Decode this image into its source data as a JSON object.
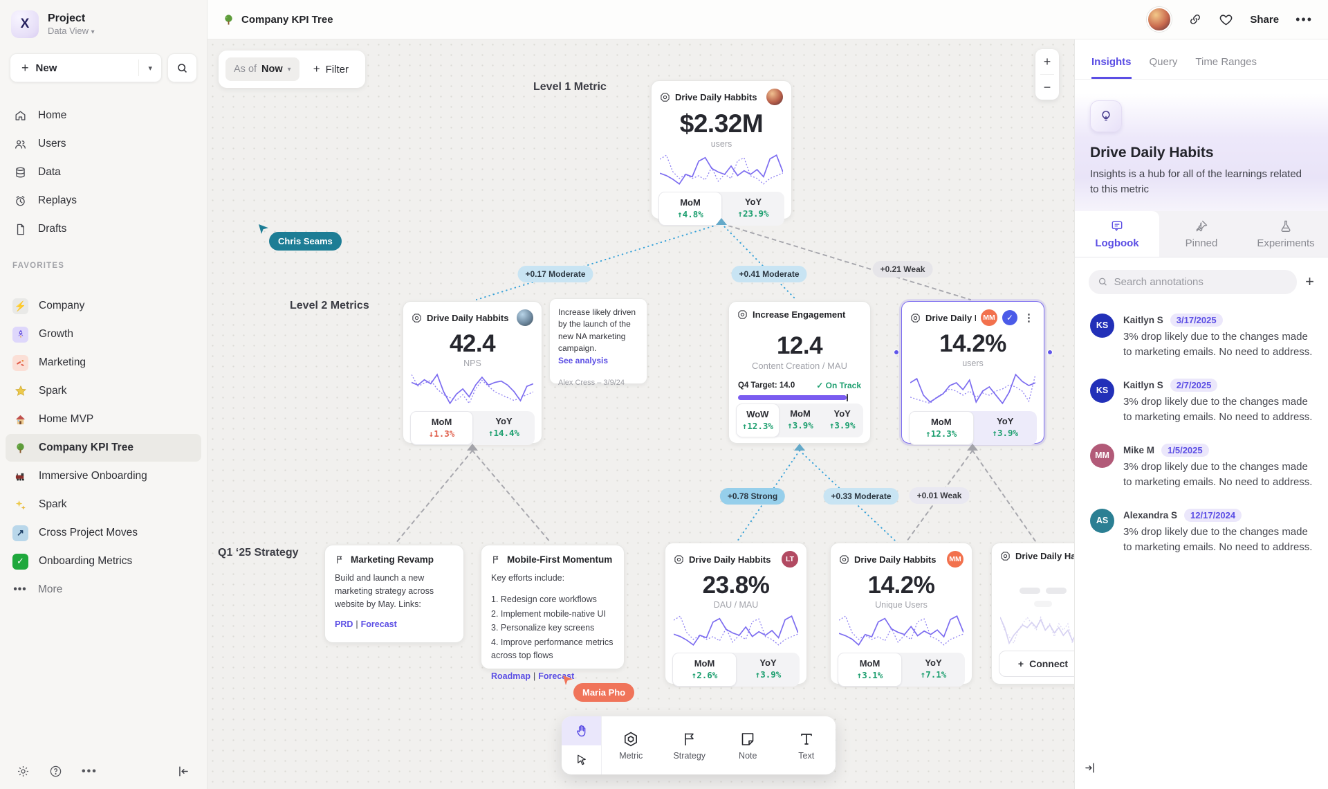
{
  "topbar": {
    "title": "Company KPI Tree",
    "share_label": "Share"
  },
  "sidebar": {
    "project_name": "Project",
    "project_view": "Data View",
    "new_label": "New",
    "favorites_label": "FAVORITES",
    "more_label": "More",
    "nav": [
      {
        "label": "Home"
      },
      {
        "label": "Users"
      },
      {
        "label": "Data"
      },
      {
        "label": "Replays"
      },
      {
        "label": "Drafts"
      }
    ],
    "favorites": [
      {
        "label": "Company"
      },
      {
        "label": "Growth"
      },
      {
        "label": "Marketing"
      },
      {
        "label": "Spark"
      },
      {
        "label": "Home MVP"
      },
      {
        "label": "Company KPI Tree"
      },
      {
        "label": "Immersive Onboarding"
      },
      {
        "label": "Spark"
      },
      {
        "label": "Cross Project Moves"
      },
      {
        "label": "Onboarding Metrics"
      }
    ]
  },
  "canvas": {
    "asof_label": "As of",
    "asof_value": "Now",
    "filter_label": "Filter",
    "zoom_in": "+",
    "zoom_out": "−",
    "level1_label": "Level 1 Metric",
    "level2_label": "Level 2 Metrics",
    "q1_label": "Q1 ‘25 Strategy",
    "cursor1": "Chris Seams",
    "cursor2": "Maria Pho",
    "edge_labels": {
      "e1": "+0.17 Moderate",
      "e2": "+0.41 Moderate",
      "e3": "+0.21 Weak",
      "e4": "+0.78 Strong",
      "e5": "+0.33 Moderate",
      "e6": "+0.01 Weak"
    }
  },
  "cards": {
    "l1": {
      "title": "Drive Daily Habbits",
      "value": "$2.32M",
      "unit": "users",
      "mom_label": "MoM",
      "mom": "↑4.8%",
      "yoy_label": "YoY",
      "yoy": "↑23.9%",
      "spark": {
        "solid": [
          30,
          26,
          20,
          12,
          28,
          24,
          50,
          56,
          38,
          32,
          28,
          42,
          26,
          34,
          28,
          36,
          24,
          54,
          60,
          32
        ],
        "dotted": [
          56,
          62,
          38,
          28,
          34,
          28,
          32,
          26,
          44,
          24,
          34,
          28,
          54,
          58,
          32,
          28,
          20,
          28,
          32,
          36
        ]
      }
    },
    "l2a": {
      "title": "Drive Daily Habbits",
      "value": "42.4",
      "unit": "NPS",
      "mom_label": "MoM",
      "mom": "↓1.3%",
      "yoy_label": "YoY",
      "yoy": "↑14.4%",
      "spark": {
        "solid": [
          62,
          58,
          66,
          60,
          74,
          48,
          30,
          44,
          52,
          40,
          58,
          70,
          58,
          62,
          64,
          58,
          48,
          34,
          56,
          60
        ],
        "dotted": [
          70,
          62,
          64,
          66,
          60,
          56,
          54,
          52,
          56,
          50,
          60,
          66,
          62,
          58,
          56,
          54,
          52,
          54,
          56,
          58
        ]
      }
    },
    "l2b": {
      "title": "Increase Engagement",
      "value": "12.4",
      "unit": "Content Creation / MAU",
      "target": "Q4 Target: 14.0",
      "status": "On Track",
      "wow_label": "WoW",
      "wow": "↑12.3%",
      "mom_label": "MoM",
      "mom": "↑3.9%",
      "yoy_label": "YoY",
      "yoy": "↑3.9%"
    },
    "l2c": {
      "title": "Drive Daily Habb..",
      "badge": "MM",
      "value": "14.2%",
      "unit": "users",
      "mom_label": "MoM",
      "mom": "↑12.3%",
      "yoy_label": "YoY",
      "yoy": "↑3.9%",
      "spark": {
        "solid": [
          58,
          64,
          40,
          30,
          36,
          42,
          54,
          58,
          48,
          62,
          30,
          46,
          52,
          40,
          28,
          44,
          70,
          60,
          54,
          58
        ],
        "dotted": [
          34,
          32,
          30,
          28,
          34,
          38,
          42,
          40,
          36,
          40,
          34,
          38,
          36,
          40,
          42,
          46,
          44,
          40,
          30,
          56
        ]
      }
    },
    "q1c": {
      "title": "Drive Daily Habbits",
      "badge": "LT",
      "value": "23.8%",
      "unit": "DAU / MAU",
      "mom_label": "MoM",
      "mom": "↑2.6%",
      "yoy_label": "YoY",
      "yoy": "↑3.9%",
      "spark": {
        "solid": [
          32,
          28,
          22,
          14,
          30,
          26,
          52,
          58,
          40,
          34,
          30,
          44,
          28,
          36,
          30,
          38,
          26,
          56,
          62,
          34
        ],
        "dotted": [
          58,
          64,
          40,
          30,
          36,
          30,
          34,
          28,
          46,
          26,
          36,
          30,
          56,
          60,
          34,
          30,
          22,
          30,
          34,
          38
        ]
      }
    },
    "q1d": {
      "title": "Drive Daily Habbits",
      "badge": "MM",
      "value": "14.2%",
      "unit": "Unique Users",
      "mom_label": "MoM",
      "mom": "↑3.1%",
      "yoy_label": "YoY",
      "yoy": "↑7.1%",
      "spark": {
        "solid": [
          34,
          30,
          24,
          14,
          32,
          28,
          54,
          60,
          42,
          36,
          32,
          46,
          30,
          38,
          32,
          40,
          28,
          58,
          64,
          36
        ],
        "dotted": [
          60,
          66,
          42,
          32,
          38,
          32,
          36,
          30,
          48,
          28,
          38,
          32,
          58,
          62,
          36,
          32,
          24,
          32,
          36,
          40
        ]
      }
    },
    "q1e": {
      "title": "Drive Daily Habbits",
      "connect_label": "Connect",
      "spark": {
        "solid": [
          48,
          40,
          28,
          34,
          38,
          42,
          40,
          44,
          40,
          46,
          38,
          42,
          36,
          40,
          34,
          38,
          30,
          36,
          44,
          40
        ],
        "dotted": [
          36,
          32,
          30,
          28,
          32,
          34,
          36,
          34,
          32,
          36,
          32,
          34,
          30,
          34,
          32,
          34,
          28,
          32,
          36,
          34
        ]
      }
    }
  },
  "strategies": {
    "a": {
      "title": "Marketing Revamp",
      "body": "Build and launch a new marketing strategy across website by May. Links:",
      "link1": "PRD",
      "sep": "|",
      "link2": "Forecast"
    },
    "b": {
      "title": "Mobile-First Momentum",
      "intro": "Key efforts include:",
      "items": [
        "1. Redesign core workflows",
        "2. Implement mobile-native UI",
        "3. Personalize key screens",
        "4. Improve performance metrics across top flows"
      ],
      "link1": "Roadmap",
      "sep": "|",
      "link2": "Forecast"
    }
  },
  "note": {
    "text": "Increase likely driven by the launch of the new NA marketing campaign.",
    "link": "See analysis",
    "author": "Alex Cress – 3/9/24"
  },
  "toolbar": {
    "tools": [
      {
        "label": "Metric"
      },
      {
        "label": "Strategy"
      },
      {
        "label": "Note"
      },
      {
        "label": "Text"
      }
    ]
  },
  "panel": {
    "tabs": [
      {
        "label": "Insights"
      },
      {
        "label": "Query"
      },
      {
        "label": "Time Ranges"
      }
    ],
    "title": "Drive Daily Habits",
    "description": "Insights is a hub for all of the learnings related to this metric",
    "subtabs": [
      {
        "label": "Logbook"
      },
      {
        "label": "Pinned"
      },
      {
        "label": "Experiments"
      }
    ],
    "search_placeholder": "Search annotations",
    "annotations": [
      {
        "initials": "KS",
        "name": "Kaitlyn S",
        "date": "3/17/2025",
        "color": "#2230b8",
        "text": "3% drop likely due to the changes made to marketing emails. No need to address."
      },
      {
        "initials": "KS",
        "name": "Kaitlyn S",
        "date": "2/7/2025",
        "color": "#2230b8",
        "text": "3% drop likely due to the changes made to marketing emails. No need to address."
      },
      {
        "initials": "MM",
        "name": "Mike M",
        "date": "1/5/2025",
        "color": "#b25a78",
        "text": "3% drop likely due to the changes made to marketing emails. No need to address."
      },
      {
        "initials": "AS",
        "name": "Alexandra S",
        "date": "12/17/2024",
        "color": "#2b7f93",
        "text": "3% drop likely due to the changes made to marketing emails. No need to address."
      }
    ]
  },
  "colors": {
    "accent": "#5b4ee4",
    "sparkline": "#7c6cf0",
    "spark_faded": "#d7d2f2",
    "green": "#1d9f6f",
    "red": "#e0604d",
    "edge_blue": "#35a1d8",
    "edge_gray": "#a8a8ae",
    "cursor1": "#1d7d95",
    "cursor2": "#f0745a"
  }
}
